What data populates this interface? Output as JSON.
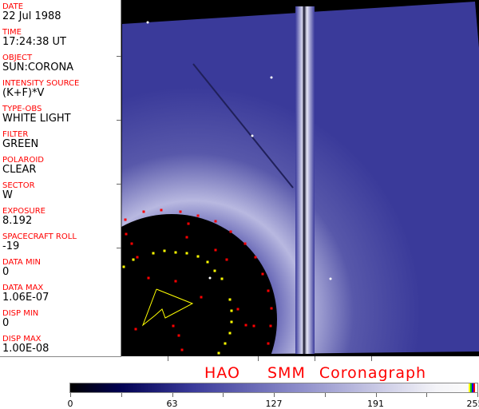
{
  "fields": [
    {
      "label": "DATE",
      "value": "22 Jul 1988"
    },
    {
      "label": "TIME",
      "value": "17:24:38 UT"
    },
    {
      "label": "OBJECT",
      "value": "SUN:CORONA"
    },
    {
      "label": "INTENSITY SOURCE",
      "value": "(K+F)*V"
    },
    {
      "label": "TYPE-OBS",
      "value": "WHITE LIGHT"
    },
    {
      "label": "FILTER",
      "value": "GREEN"
    },
    {
      "label": "POLAROID",
      "value": "CLEAR"
    },
    {
      "label": "SECTOR",
      "value": "W"
    },
    {
      "label": "EXPOSURE",
      "value": "8.192"
    },
    {
      "label": "SPACECRAFT ROLL",
      "value": "-19"
    },
    {
      "label": "DATA MIN",
      "value": "0"
    },
    {
      "label": "DATA MAX",
      "value": "1.06E-07"
    },
    {
      "label": "DISP MIN",
      "value": "0"
    },
    {
      "label": "DISP MAX",
      "value": "1.00E-08"
    }
  ],
  "title": "HAO  SMM Coronagraph",
  "colorbar": {
    "ticks": [
      "0",
      "63",
      "127",
      "191",
      "255"
    ],
    "colors": {
      "low": "#000000",
      "mid": "#3a3a9a",
      "high": "#fafafa"
    },
    "overlay_colors": [
      "#ffff00",
      "#00c000",
      "#0000ff",
      "#ff0000"
    ]
  },
  "image": {
    "marker_colors": {
      "red": "#ff0000",
      "yellow": "#ffff00"
    }
  }
}
